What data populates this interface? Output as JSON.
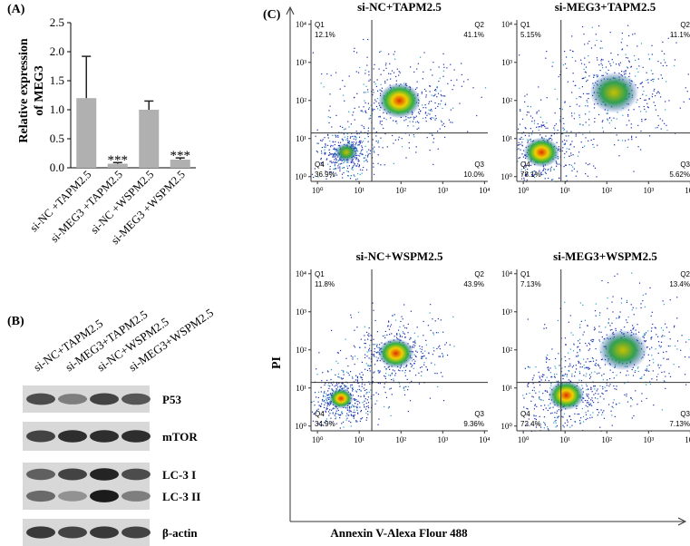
{
  "chart_data": {
    "type": "bar",
    "panel": "(A)",
    "ylabel": [
      "Relative expression",
      "of MEG3"
    ],
    "categories": [
      "si-NC +TAPM2.5",
      "si-MEG3 +TAPM2.5",
      "si-NC +WSPM2.5",
      "si-MEG3 +WSPM2.5"
    ],
    "values": [
      1.2,
      0.07,
      1.0,
      0.14
    ],
    "errors": [
      0.72,
      0.02,
      0.15,
      0.03
    ],
    "significance": [
      null,
      "***",
      null,
      "***"
    ],
    "color": "#b0b0b0",
    "ylim": [
      0,
      2.5
    ],
    "yticks": [
      {
        "value": 0,
        "label": "0.0"
      },
      0.5,
      {
        "value": 1,
        "label": "1.0"
      },
      1.5,
      {
        "value": 2,
        "label": "2.0"
      },
      2.5
    ]
  },
  "blot": {
    "panel": "(B)",
    "lanes": [
      "si-NC+TAPM2.5",
      "si-MEG3+TAPM2.5",
      "si-NC+WSPM2.5",
      "si-MEG3+WSPM2.5"
    ],
    "bands": [
      "P53",
      "mTOR",
      "LC-3 I",
      "LC-3 II",
      "β-actin"
    ]
  },
  "flow": {
    "panel": "(C)",
    "ylabel": "PI",
    "xlabel": "Annexin V-Alexa Flour 488",
    "log": true,
    "xlim": [
      0.7,
      12000
    ],
    "ylim": [
      0.75,
      13000
    ],
    "ticks": [
      {
        "value": 1,
        "label": "10⁰"
      },
      {
        "value": 10,
        "label": "10¹"
      },
      {
        "value": 100,
        "label": "10²"
      },
      {
        "value": 1000,
        "label": "10³"
      },
      {
        "value": 10000,
        "label": "10⁴"
      }
    ],
    "plots": [
      {
        "title": "si-NC+TAPM2.5",
        "gate": [
          20,
          14
        ],
        "quadrants": [
          {
            "name": "Q1",
            "value": "12.1%"
          },
          {
            "name": "Q2",
            "value": "41.1%"
          },
          {
            "name": "Q3",
            "value": "10.0%"
          },
          {
            "name": "Q4",
            "value": "36.9%"
          }
        ]
      },
      {
        "title": "si-MEG3+TAPM2.5",
        "gate": [
          8,
          14
        ],
        "quadrants": [
          {
            "name": "Q1",
            "value": "5.15%"
          },
          {
            "name": "Q2",
            "value": "11.1%"
          },
          {
            "name": "Q3",
            "value": "5.62%"
          },
          {
            "name": "Q4",
            "value": "78.1%"
          }
        ]
      },
      {
        "title": "si-NC+WSPM2.5",
        "gate": [
          20,
          14
        ],
        "quadrants": [
          {
            "name": "Q1",
            "value": "11.8%"
          },
          {
            "name": "Q2",
            "value": "43.9%"
          },
          {
            "name": "Q3",
            "value": "9.36%"
          },
          {
            "name": "Q4",
            "value": "34.9%"
          }
        ]
      },
      {
        "title": "si-MEG3+WSPM2.5",
        "gate": [
          8,
          14
        ],
        "quadrants": [
          {
            "name": "Q1",
            "value": "7.13%"
          },
          {
            "name": "Q2",
            "value": "13.4%"
          },
          {
            "name": "Q3",
            "value": "7.13%"
          },
          {
            "name": "Q4",
            "value": "72.4%"
          }
        ]
      }
    ]
  }
}
